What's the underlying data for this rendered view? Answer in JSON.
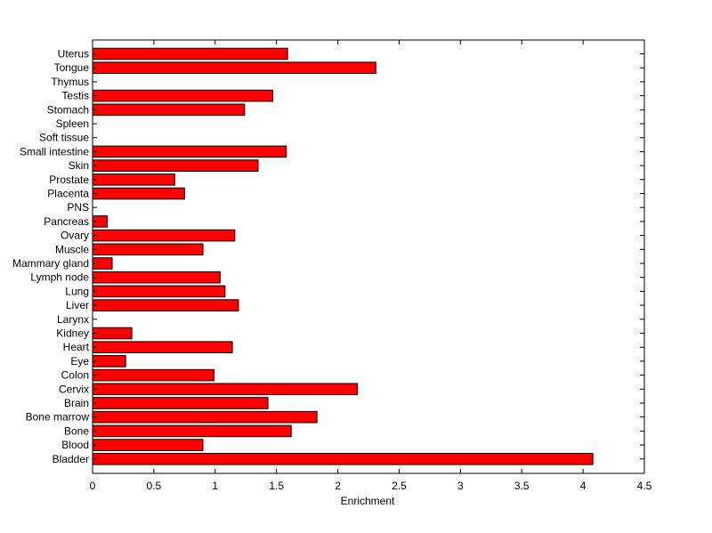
{
  "chart_data": {
    "type": "bar",
    "orientation": "horizontal",
    "title": "",
    "xlabel": "Enrichment",
    "ylabel": "",
    "xlim": [
      0,
      4.5
    ],
    "xticks": [
      "0",
      "0.5",
      "1",
      "1.5",
      "2",
      "2.5",
      "3",
      "3.5",
      "4",
      "4.5"
    ],
    "grid": false,
    "bar_color": "#ff0000",
    "categories": [
      "Uterus",
      "Tongue",
      "Thymus",
      "Testis",
      "Stomach",
      "Spleen",
      "Soft tissue",
      "Small intestine",
      "Skin",
      "Prostate",
      "Placenta",
      "PNS",
      "Pancreas",
      "Ovary",
      "Muscle",
      "Mammary gland",
      "Lymph node",
      "Lung",
      "Liver",
      "Larynx",
      "Kidney",
      "Heart",
      "Eye",
      "Colon",
      "Cervix",
      "Brain",
      "Bone marrow",
      "Bone",
      "Blood",
      "Bladder"
    ],
    "values": [
      1.59,
      2.31,
      0,
      1.47,
      1.24,
      0,
      0,
      1.58,
      1.35,
      0.67,
      0.75,
      0,
      0.12,
      1.16,
      0.9,
      0.16,
      1.04,
      1.08,
      1.19,
      0,
      0.32,
      1.14,
      0.27,
      0.99,
      2.16,
      1.43,
      1.83,
      1.62,
      0.9,
      4.08
    ]
  }
}
